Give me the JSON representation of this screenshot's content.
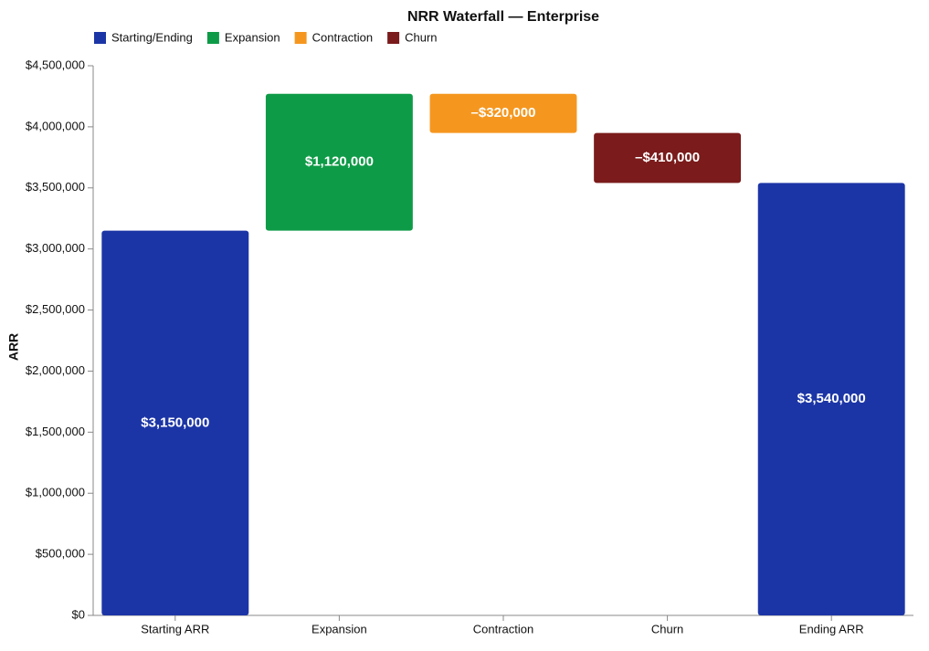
{
  "chart_data": {
    "type": "waterfall",
    "title": "NRR Waterfall — Enterprise",
    "y_label": "ARR",
    "categories": [
      "Starting ARR",
      "Expansion",
      "Contraction",
      "Churn",
      "Ending ARR"
    ],
    "values": [
      3150000,
      1120000,
      -320000,
      -410000,
      3540000
    ],
    "value_labels": [
      "$3,150,000",
      "$1,120,000",
      "–$320,000",
      "–$410,000",
      "$3,540,000"
    ],
    "measure": [
      "absolute",
      "relative",
      "relative",
      "relative",
      "total"
    ],
    "colors": [
      "#1c35a6",
      "#0e9b47",
      "#f5971f",
      "#7b1b1b",
      "#1c35a6"
    ],
    "legend": [
      {
        "name": "Starting/Ending",
        "color": "#1c35a6"
      },
      {
        "name": "Expansion",
        "color": "#0e9b47"
      },
      {
        "name": "Contraction",
        "color": "#f5971f"
      },
      {
        "name": "Churn",
        "color": "#7b1b1b"
      }
    ],
    "ylim": [
      0,
      4500000
    ],
    "yticks": [
      {
        "value": 0,
        "label": "$0"
      },
      {
        "value": 500000,
        "label": "$500,000"
      },
      {
        "value": 1000000,
        "label": "$1,000,000"
      },
      {
        "value": 1500000,
        "label": "$1,500,000"
      },
      {
        "value": 2000000,
        "label": "$2,000,000"
      },
      {
        "value": 2500000,
        "label": "$2,500,000"
      },
      {
        "value": 3000000,
        "label": "$3,000,000"
      },
      {
        "value": 3500000,
        "label": "$3,500,000"
      },
      {
        "value": 4000000,
        "label": "$4,000,000"
      },
      {
        "value": 4500000,
        "label": "$4,500,000"
      }
    ],
    "grid": false
  }
}
